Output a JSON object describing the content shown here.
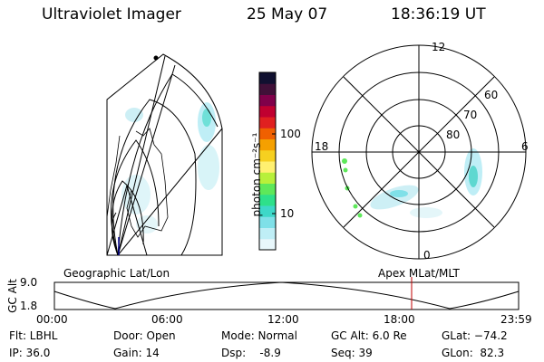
{
  "header": {
    "instrument": "Ultraviolet Imager",
    "date": "25 May 07",
    "time": "18:36:19 UT"
  },
  "colorbar": {
    "unit_label": "photon cm⁻²s⁻¹",
    "tick_100": "100",
    "tick_10": "10",
    "scale": "log",
    "colors": [
      "#e8f7fb",
      "#bfeef6",
      "#7fe0e8",
      "#3dd8c8",
      "#2ee08a",
      "#5ee85a",
      "#b8f03a",
      "#fff070",
      "#f6d020",
      "#f5a000",
      "#f06000",
      "#e02020",
      "#c00030",
      "#80004a",
      "#401038",
      "#101030"
    ]
  },
  "polar_plot": {
    "mlt_labels": {
      "top": "12",
      "bottom": "0",
      "left": "18",
      "right": "6"
    },
    "lat_labels": [
      "60",
      "70",
      "80"
    ],
    "caption": "Apex MLat/MLT"
  },
  "geo_plot": {
    "caption": "Geographic Lat/Lon"
  },
  "altitude_panel": {
    "axis_label": "GC Alt",
    "ticks": [
      "9.0",
      "1.8"
    ],
    "time_ticks": [
      "00:00",
      "06:00",
      "12:00",
      "18:00",
      "23:59"
    ],
    "marker_color": "#c00000"
  },
  "info": {
    "flt": "Flt: LBHL",
    "ip": "IP: 36.0",
    "door": "Door: Open",
    "gain": "Gain: 14",
    "mode": "Mode: Normal",
    "dsp": "Dsp:    -8.9",
    "gcalt": "GC Alt: 6.0 Re",
    "seq": "Seq: 39",
    "glat": "GLat: −74.2",
    "glon": "GLon:  82.3"
  }
}
